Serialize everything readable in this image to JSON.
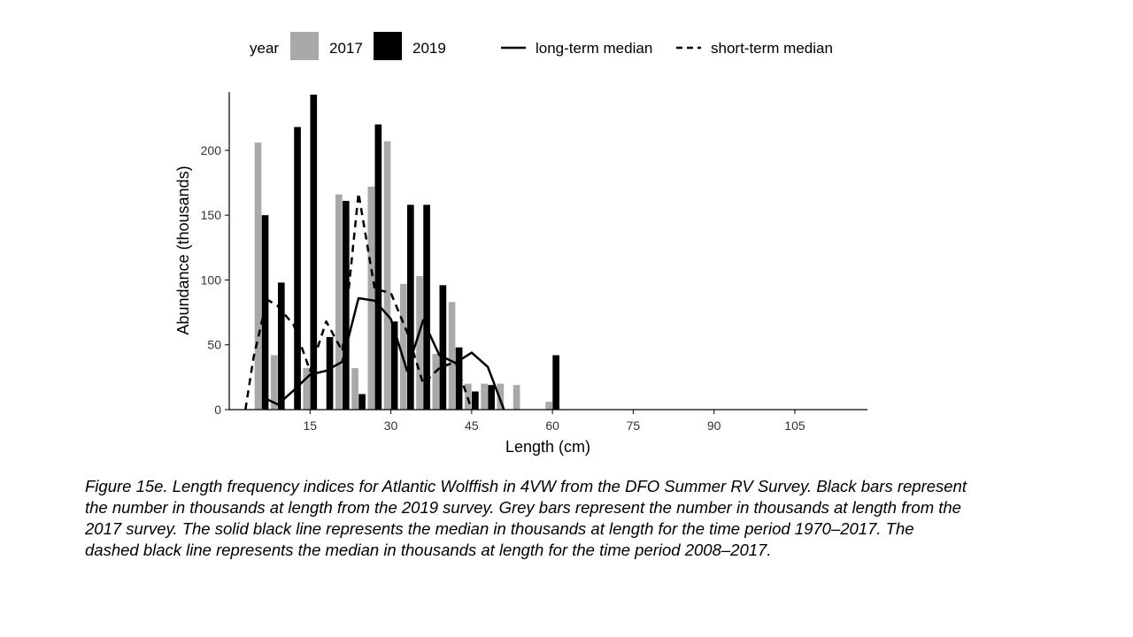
{
  "chart_data": {
    "type": "bar",
    "xlabel": "Length (cm)",
    "ylabel": "Abundance (thousands)",
    "xlim": [
      0,
      117
    ],
    "ylim": [
      0,
      245
    ],
    "x_ticks": [
      15,
      30,
      45,
      60,
      75,
      90,
      105
    ],
    "y_ticks": [
      0,
      50,
      100,
      150,
      200
    ],
    "legend": {
      "position": "top",
      "year_title": "year",
      "bar_labels": [
        "2017",
        "2019"
      ],
      "line_labels": [
        "long-term median",
        "short-term median"
      ]
    },
    "bar_series": [
      {
        "name": "2017",
        "color": "#a9a9a9",
        "x": [
          6,
          9,
          15,
          21,
          24,
          27,
          30,
          33,
          36,
          39,
          42,
          45,
          48,
          51,
          54,
          60
        ],
        "values": [
          206,
          42,
          32,
          166,
          32,
          172,
          207,
          97,
          103,
          43,
          83,
          20,
          20,
          20,
          19,
          6
        ]
      },
      {
        "name": "2019",
        "color": "#000000",
        "x": [
          6,
          9,
          12,
          15,
          18,
          21,
          24,
          27,
          30,
          33,
          36,
          39,
          42,
          45,
          48,
          60
        ],
        "values": [
          150,
          98,
          218,
          243,
          56,
          161,
          12,
          220,
          68,
          158,
          158,
          96,
          48,
          14,
          19,
          42
        ]
      }
    ],
    "line_series": [
      {
        "name": "long-term median",
        "dash": "solid",
        "x": [
          7,
          9,
          12,
          15,
          18,
          21,
          24,
          27,
          30,
          33,
          36,
          39,
          42,
          45,
          48,
          51
        ],
        "y": [
          8,
          4,
          15,
          27,
          30,
          37,
          86,
          84,
          70,
          30,
          69,
          42,
          36,
          44,
          33,
          0
        ]
      },
      {
        "name": "short-term median",
        "dash": "dashed",
        "x": [
          3,
          4.5,
          7,
          9,
          12,
          15,
          18,
          21,
          24,
          27,
          30,
          33,
          36,
          39,
          42,
          45
        ],
        "y": [
          0,
          40,
          85,
          80,
          65,
          30,
          68,
          45,
          167,
          93,
          90,
          60,
          20,
          32,
          37,
          0
        ]
      }
    ]
  },
  "caption": "Figure 15e. Length frequency indices for Atlantic Wolffish in 4VW from the DFO Summer RV Survey. Black bars represent the number in thousands at length from the 2019 survey. Grey bars represent the number in thousands at length from the 2017 survey. The solid black line represents the median in thousands at length for the time period 1970–2017. The dashed black line represents the median in thousands at length for the time period 2008–2017."
}
